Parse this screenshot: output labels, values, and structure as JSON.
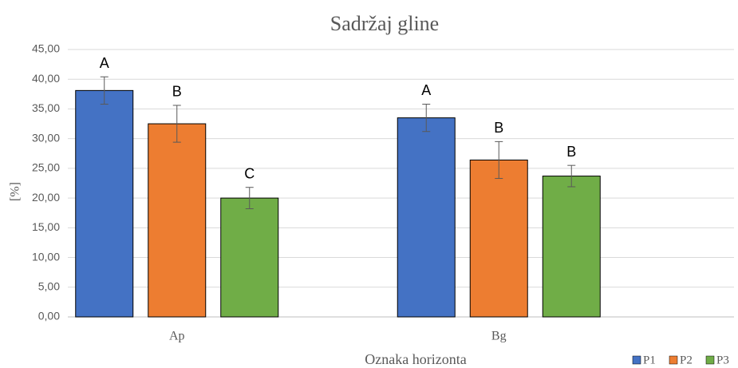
{
  "chart_data": {
    "type": "bar",
    "title": "Sadržaj gline",
    "xlabel": "Oznaka horizonta",
    "ylabel": "[%]",
    "categories": [
      "Ap",
      "Bg"
    ],
    "series": [
      {
        "name": "P1",
        "color": "#4472c4",
        "values": [
          38.1,
          33.5
        ],
        "errors": [
          2.3,
          2.3
        ],
        "annotations": [
          "A",
          "A"
        ]
      },
      {
        "name": "P2",
        "color": "#ed7d31",
        "values": [
          32.5,
          26.4
        ],
        "errors": [
          3.1,
          3.1
        ],
        "annotations": [
          "B",
          "B"
        ]
      },
      {
        "name": "P3",
        "color": "#70ad47",
        "values": [
          20.0,
          23.7
        ],
        "errors": [
          1.8,
          1.8
        ],
        "annotations": [
          "C",
          "B"
        ]
      }
    ],
    "ylim": [
      0,
      45
    ],
    "yticks": [
      {
        "value": 0,
        "label": "0,00"
      },
      {
        "value": 5,
        "label": "5,00"
      },
      {
        "value": 10,
        "label": "10,00"
      },
      {
        "value": 15,
        "label": "15,00"
      },
      {
        "value": 20,
        "label": "20,00"
      },
      {
        "value": 25,
        "label": "25,00"
      },
      {
        "value": 30,
        "label": "30,00"
      },
      {
        "value": 35,
        "label": "35,00"
      },
      {
        "value": 40,
        "label": "40,00"
      },
      {
        "value": 45,
        "label": "45,00"
      }
    ],
    "grid": true,
    "legend": "bottom-right"
  }
}
